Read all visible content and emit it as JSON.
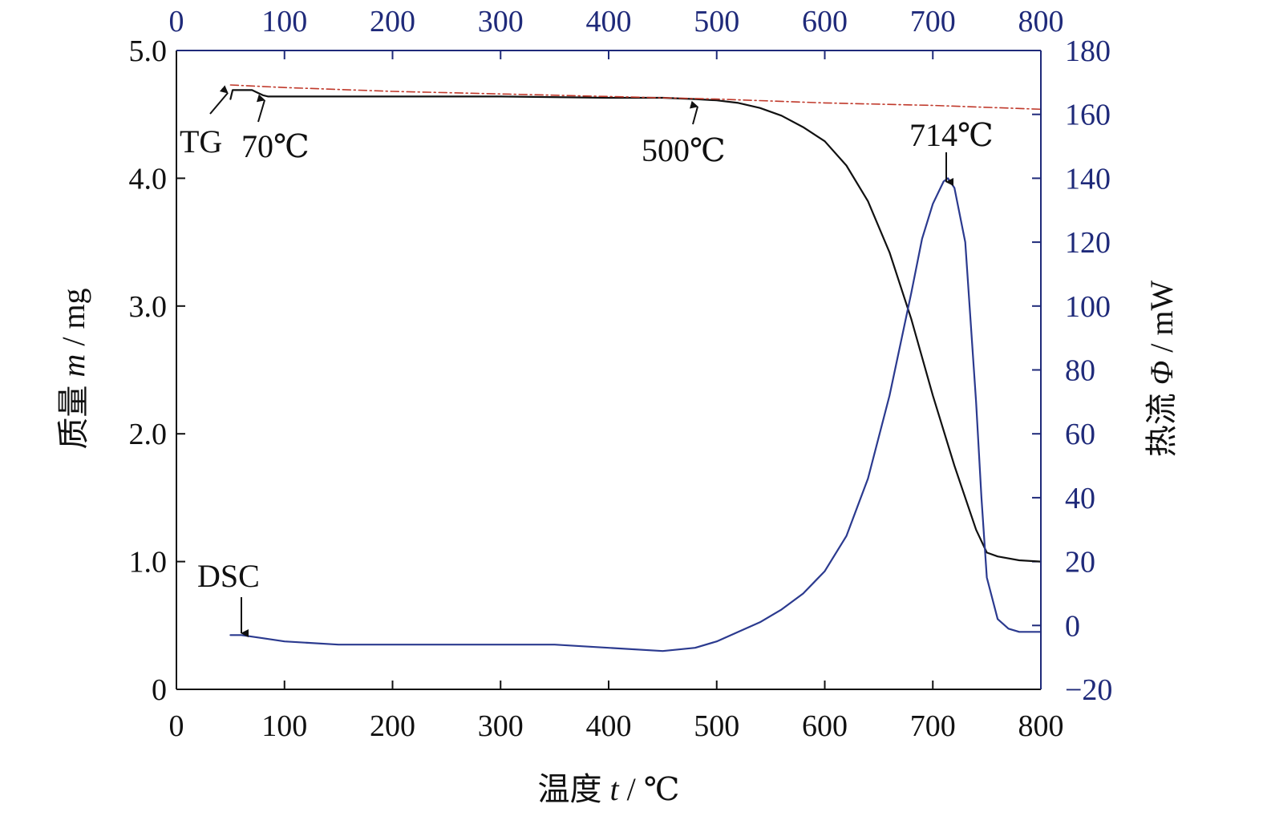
{
  "chart_data": {
    "type": "line",
    "xlabel": "温度 t / ℃",
    "xlabel_parts": {
      "prefix": "温度 ",
      "var": "t",
      "suffix": " / ℃"
    },
    "ylabel_left": "质量 m / mg",
    "ylabel_left_parts": {
      "prefix": "质量 ",
      "var": "m",
      "suffix": " / mg"
    },
    "ylabel_right": "热流 Φ / mW",
    "ylabel_right_parts": {
      "prefix": "热流 ",
      "var": "Φ",
      "suffix": " / mW"
    },
    "xlim": [
      0,
      800
    ],
    "ylim_left": [
      0,
      5.0
    ],
    "ylim_right": [
      -20,
      180
    ],
    "x_ticks": [
      0,
      100,
      200,
      300,
      400,
      500,
      600,
      700,
      800
    ],
    "x_tick_labels": [
      "0",
      "100",
      "200",
      "300",
      "400",
      "500",
      "600",
      "700",
      "800"
    ],
    "x_top_tick_labels": [
      "0",
      "100",
      "200",
      "300",
      "400",
      "500",
      "600",
      "700",
      "800"
    ],
    "y_left_ticks": [
      0,
      1.0,
      2.0,
      3.0,
      4.0,
      5.0
    ],
    "y_left_tick_labels": [
      "0",
      "1.0",
      "2.0",
      "3.0",
      "4.0",
      "5.0"
    ],
    "y_right_ticks": [
      -20,
      0,
      20,
      40,
      60,
      80,
      100,
      120,
      140,
      160,
      180
    ],
    "y_right_tick_labels": [
      "−20",
      "0",
      "20",
      "40",
      "60",
      "80",
      "100",
      "120",
      "140",
      "160",
      "180"
    ],
    "grid": false,
    "colors": {
      "tg": "#111111",
      "dsc": "#2b3a8f",
      "dash": "#c0392b",
      "right_axis": "#1f2a7a"
    },
    "series": [
      {
        "axis": "left",
        "style": "solid",
        "color": "#111111",
        "x": [
          50,
          52,
          60,
          70,
          75,
          80,
          85,
          90,
          100,
          150,
          200,
          300,
          400,
          450,
          480,
          500,
          520,
          540,
          560,
          580,
          600,
          620,
          640,
          660,
          680,
          700,
          720,
          740,
          750,
          760,
          780,
          800
        ],
        "y": [
          4.62,
          4.69,
          4.69,
          4.69,
          4.67,
          4.65,
          4.64,
          4.64,
          4.64,
          4.64,
          4.64,
          4.64,
          4.63,
          4.63,
          4.62,
          4.61,
          4.59,
          4.55,
          4.49,
          4.4,
          4.29,
          4.1,
          3.82,
          3.42,
          2.9,
          2.3,
          1.75,
          1.25,
          1.07,
          1.04,
          1.01,
          1.0
        ]
      },
      {
        "axis": "left",
        "style": "dashdot",
        "color": "#c0392b",
        "x": [
          50,
          100,
          200,
          300,
          400,
          500,
          600,
          700,
          800
        ],
        "y": [
          4.73,
          4.71,
          4.68,
          4.66,
          4.64,
          4.62,
          4.59,
          4.57,
          4.54
        ]
      },
      {
        "axis": "right",
        "style": "solid",
        "color": "#2b3a8f",
        "x": [
          50,
          60,
          80,
          100,
          150,
          200,
          300,
          350,
          400,
          450,
          480,
          500,
          520,
          540,
          560,
          580,
          600,
          620,
          640,
          660,
          680,
          690,
          700,
          710,
          714,
          720,
          730,
          740,
          745,
          750,
          760,
          770,
          780,
          800
        ],
        "y": [
          -3,
          -3,
          -4,
          -5,
          -6,
          -6,
          -6,
          -6,
          -7,
          -8,
          -7,
          -5,
          -2,
          1,
          5,
          10,
          17,
          28,
          46,
          72,
          104,
          121,
          132,
          139,
          140,
          137,
          120,
          70,
          40,
          15,
          2,
          -1,
          -2,
          -2
        ]
      }
    ],
    "annotations": [
      {
        "text": "TG",
        "x_data": 50,
        "y_data": 4.62,
        "axis": "left"
      },
      {
        "text": "70℃",
        "x_data": 80,
        "y_data": 4.65,
        "axis": "left"
      },
      {
        "text": "500℃",
        "x_data": 480,
        "y_data": 4.62,
        "axis": "left"
      },
      {
        "text": "714℃",
        "x_data": 714,
        "y_data": 140,
        "axis": "right"
      },
      {
        "text": "DSC",
        "x_data": 60,
        "y_data": -3,
        "axis": "right"
      }
    ]
  }
}
